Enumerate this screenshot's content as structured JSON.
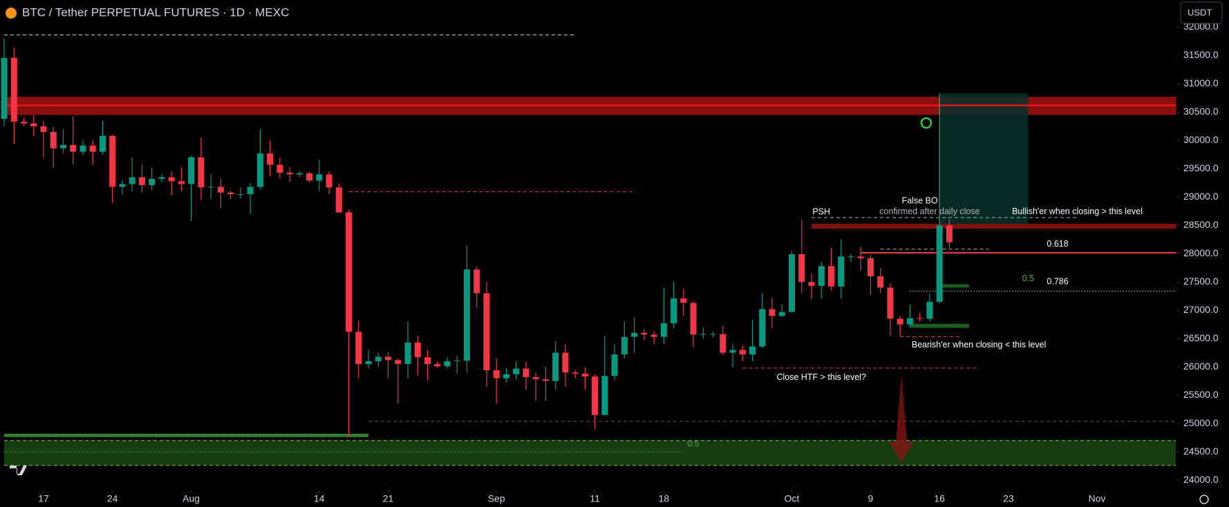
{
  "chart_data": {
    "type": "candlestick",
    "title": "BTC / Tether PERPETUAL FUTURES · 1D · MEXC",
    "currency": "USDT",
    "up_color": "#089981",
    "down_color": "#f23645",
    "grid": false,
    "x": [
      "Jul 13",
      "Jul 14",
      "Jul 15",
      "Jul 16",
      "Jul 17",
      "Jul 18",
      "Jul 19",
      "Jul 20",
      "Jul 21",
      "Jul 22",
      "Jul 23",
      "Jul 24",
      "Jul 25",
      "Jul 26",
      "Jul 27",
      "Jul 28",
      "Jul 29",
      "Jul 30",
      "Jul 31",
      "Aug 1",
      "Aug 2",
      "Aug 3",
      "Aug 4",
      "Aug 5",
      "Aug 6",
      "Aug 7",
      "Aug 8",
      "Aug 9",
      "Aug 10",
      "Aug 11",
      "Aug 12",
      "Aug 13",
      "Aug 14",
      "Aug 15",
      "Aug 16",
      "Aug 17",
      "Aug 18",
      "Aug 19",
      "Aug 20",
      "Aug 21",
      "Aug 22",
      "Aug 23",
      "Aug 24",
      "Aug 25",
      "Aug 26",
      "Aug 27",
      "Aug 28",
      "Aug 29",
      "Aug 30",
      "Aug 31",
      "Sep 1",
      "Sep 2",
      "Sep 3",
      "Sep 4",
      "Sep 5",
      "Sep 6",
      "Sep 7",
      "Sep 8",
      "Sep 9",
      "Sep 10",
      "Sep 11",
      "Sep 12",
      "Sep 13",
      "Sep 14",
      "Sep 15",
      "Sep 16",
      "Sep 17",
      "Sep 18",
      "Sep 19",
      "Sep 20",
      "Sep 21",
      "Sep 22",
      "Sep 23",
      "Sep 24",
      "Sep 25",
      "Sep 26",
      "Sep 27",
      "Sep 28",
      "Sep 29",
      "Sep 30",
      "Oct 1",
      "Oct 2",
      "Oct 3",
      "Oct 4",
      "Oct 5",
      "Oct 6",
      "Oct 7",
      "Oct 8",
      "Oct 9",
      "Oct 10",
      "Oct 11",
      "Oct 12",
      "Oct 13",
      "Oct 14",
      "Oct 15",
      "Oct 16",
      "Oct 17"
    ],
    "open": [
      30380,
      31460,
      30330,
      30300,
      30250,
      30150,
      29860,
      29920,
      29800,
      29910,
      29800,
      30080,
      29180,
      29230,
      29350,
      29210,
      29320,
      29350,
      29280,
      29230,
      29700,
      29170,
      29180,
      29080,
      29050,
      29050,
      29180,
      29770,
      29570,
      29430,
      29400,
      29420,
      29290,
      29400,
      29170,
      28730,
      26620,
      26050,
      26100,
      26180,
      26120,
      26050,
      26430,
      26170,
      26050,
      26010,
      26100,
      26110,
      27720,
      27300,
      25940,
      25800,
      25870,
      25970,
      25820,
      25780,
      25750,
      26250,
      25900,
      25880,
      25830,
      25150,
      25840,
      26220,
      26530,
      26600,
      26570,
      26530,
      26770,
      27210,
      27130,
      26570,
      26580,
      26580,
      26250,
      26300,
      26220,
      26360,
      27020,
      26900,
      26970,
      27990,
      27500,
      27430,
      27780,
      27420,
      27950,
      27950,
      27920,
      27600,
      27400,
      26850,
      26750,
      26860,
      26850,
      27150,
      28500
    ],
    "high": [
      31800,
      31640,
      30400,
      30450,
      30340,
      30240,
      30200,
      30420,
      30000,
      30000,
      30350,
      30100,
      29300,
      29700,
      29570,
      29520,
      29400,
      29450,
      29520,
      29730,
      30050,
      29400,
      29320,
      29110,
      29170,
      29250,
      30200,
      30000,
      29700,
      29530,
      29460,
      29450,
      29660,
      29450,
      29230,
      28780,
      26820,
      26300,
      26250,
      26260,
      26150,
      26800,
      26550,
      26300,
      26100,
      26170,
      26200,
      28150,
      27770,
      27500,
      26150,
      25980,
      26100,
      26100,
      25900,
      26000,
      26450,
      26400,
      25950,
      25990,
      25870,
      26550,
      26400,
      26800,
      26880,
      26670,
      26630,
      27400,
      27500,
      27380,
      27160,
      26700,
      26630,
      26730,
      26400,
      26380,
      26830,
      27300,
      27220,
      27100,
      28050,
      28600,
      27650,
      27850,
      28100,
      28250,
      28000,
      28120,
      27980,
      27750,
      27480,
      26900,
      27100,
      26950,
      27300,
      28600,
      28600
    ],
    "low": [
      30250,
      29940,
      30260,
      30080,
      29700,
      29520,
      29770,
      29580,
      29740,
      29570,
      29750,
      28900,
      29040,
      29100,
      29080,
      29120,
      29260,
      29030,
      29100,
      28580,
      28950,
      28960,
      28800,
      28960,
      28970,
      28700,
      29130,
      29370,
      29330,
      29270,
      29350,
      29250,
      29100,
      29050,
      28720,
      24760,
      25800,
      25980,
      26000,
      25800,
      25350,
      25800,
      25850,
      25770,
      25980,
      25970,
      25880,
      25900,
      27050,
      25650,
      25350,
      25730,
      25780,
      25600,
      25400,
      25400,
      25600,
      25650,
      25800,
      25600,
      24900,
      25150,
      25770,
      26150,
      26250,
      26470,
      26400,
      26400,
      26680,
      26900,
      26350,
      26500,
      26520,
      26200,
      25990,
      26100,
      26100,
      26330,
      26680,
      26880,
      26960,
      27300,
      27200,
      27200,
      27350,
      27200,
      27850,
      27700,
      27270,
      27300,
      26550,
      26550,
      26700,
      26800,
      26800,
      27120,
      28100
    ],
    "close": [
      31460,
      30330,
      30300,
      30250,
      30150,
      29860,
      29920,
      29800,
      29910,
      29800,
      30080,
      29180,
      29230,
      29350,
      29210,
      29320,
      29350,
      29280,
      29230,
      29700,
      29170,
      29180,
      29080,
      29050,
      29050,
      29180,
      29770,
      29570,
      29430,
      29400,
      29420,
      29290,
      29400,
      29170,
      28730,
      26620,
      26050,
      26100,
      26180,
      26120,
      26050,
      26430,
      26170,
      26050,
      26010,
      26100,
      26110,
      27720,
      27300,
      25940,
      25800,
      25870,
      25970,
      25820,
      25780,
      25750,
      26250,
      25900,
      25880,
      25830,
      25150,
      25840,
      26220,
      26530,
      26600,
      26570,
      26530,
      26770,
      27210,
      27130,
      26570,
      26580,
      26580,
      26250,
      26300,
      26220,
      26360,
      27020,
      26900,
      26970,
      27990,
      27500,
      27430,
      27780,
      27420,
      27950,
      27950,
      27920,
      27600,
      27400,
      26850,
      26750,
      26860,
      26850,
      27150,
      28500,
      28200
    ],
    "xlim": [
      "Jul 13",
      "Nov 9"
    ],
    "xticks": [
      {
        "value": "Jul 17",
        "label": "17"
      },
      {
        "value": "Jul 24",
        "label": "24"
      },
      {
        "value": "Aug 1",
        "label": "Aug"
      },
      {
        "value": "Aug 14",
        "label": "14"
      },
      {
        "value": "Aug 21",
        "label": "21"
      },
      {
        "value": "Sep 1",
        "label": "Sep"
      },
      {
        "value": "Sep 11",
        "label": "11"
      },
      {
        "value": "Sep 18",
        "label": "18"
      },
      {
        "value": "Oct 1",
        "label": "Oct"
      },
      {
        "value": "Oct 9",
        "label": "9"
      },
      {
        "value": "Oct 16",
        "label": "16"
      },
      {
        "value": "Oct 23",
        "label": "23"
      },
      {
        "value": "Nov 1",
        "label": "Nov"
      }
    ],
    "ylim": [
      23830,
      32480
    ],
    "yticks": [
      {
        "value": 24000,
        "label": "24000.0"
      },
      {
        "value": 24500,
        "label": "24500.0"
      },
      {
        "value": 25000,
        "label": "25000.0"
      },
      {
        "value": 25500,
        "label": "25500.0"
      },
      {
        "value": 26000,
        "label": "26000.0"
      },
      {
        "value": 26500,
        "label": "26500.0"
      },
      {
        "value": 27000,
        "label": "27000.0"
      },
      {
        "value": 27500,
        "label": "27500.0"
      },
      {
        "value": 28000,
        "label": "28000.0"
      },
      {
        "value": 28500,
        "label": "28500.0"
      },
      {
        "value": 29000,
        "label": "29000.0"
      },
      {
        "value": 29500,
        "label": "29500.0"
      },
      {
        "value": 30000,
        "label": "30000.0"
      },
      {
        "value": 30500,
        "label": "30500.0"
      },
      {
        "value": 31000,
        "label": "31000.0"
      },
      {
        "value": 31500,
        "label": "31500.0"
      },
      {
        "value": 32000,
        "label": "32000.0"
      }
    ],
    "zones": [
      {
        "low": 30450,
        "high": 30770,
        "from": "Jul 13",
        "to": "Nov 9",
        "color": "#8c0f0f"
      },
      {
        "low": 28440,
        "high": 28530,
        "from": "Oct 3",
        "to": "Nov 9",
        "color": "#7a1212"
      },
      {
        "low": 27400,
        "high": 27460,
        "from": "Oct 16",
        "to": "Oct 19",
        "color": "#1b5e20"
      },
      {
        "low": 26690,
        "high": 26760,
        "from": "Oct 13",
        "to": "Oct 19",
        "color": "#1b5e20"
      },
      {
        "low": 24760,
        "high": 24820,
        "from": "Jul 13",
        "to": "Aug 19",
        "color": "#2e7d32"
      },
      {
        "low": 24260,
        "high": 24700,
        "from": "Jul 13",
        "to": "Nov 9",
        "color": "#163d10"
      }
    ],
    "levels": [
      {
        "price": 30620,
        "from": "Jul 13",
        "to": "Nov 9",
        "color": "#ff1a1a",
        "style": "solid"
      },
      {
        "price": 31862,
        "from": "Jul 13",
        "to": "Sep 9",
        "color": "#d1d4dc",
        "style": "dashed"
      },
      {
        "price": 29093,
        "from": "Aug 17",
        "to": "Sep 15",
        "color": "#f23645",
        "style": "dashed"
      },
      {
        "price": 28637,
        "from": "Oct 3",
        "to": "Oct 30",
        "color": "#b2b5be",
        "style": "dashed"
      },
      {
        "price": 28080,
        "from": "Oct 10",
        "to": "Oct 21",
        "color": "#b2b5be",
        "style": "dashed"
      },
      {
        "price": 28014,
        "from": "Oct 8",
        "to": "Nov 9",
        "color": "#f23645",
        "style": "solid"
      },
      {
        "price": 27336,
        "from": "Oct 13",
        "to": "Nov 9",
        "color": "#c8c864",
        "style": "dotted"
      },
      {
        "price": 26533,
        "from": "Oct 12",
        "to": "Oct 18",
        "color": "#f23645",
        "style": "dashed"
      },
      {
        "price": 25979,
        "from": "Sep 26",
        "to": "Oct 20",
        "color": "#f23645",
        "style": "dashed"
      },
      {
        "price": 25038,
        "from": "Aug 19",
        "to": "Nov 9",
        "color": "#5d606b",
        "style": "dashed"
      },
      {
        "price": 24700,
        "from": "Jul 13",
        "to": "Nov 9",
        "color": "#8bc34a",
        "style": "dashed"
      },
      {
        "price": 24260,
        "from": "Jul 13",
        "to": "Nov 9",
        "color": "#8bc34a",
        "style": "dashed"
      },
      {
        "price": 24498,
        "from": "Jul 13",
        "to": "Sep 20",
        "color": "#4caf50",
        "style": "dotted"
      }
    ],
    "position": {
      "from": "Oct 16",
      "to": "Oct 25",
      "entry": 28530,
      "target": 30830,
      "color": "#08302a"
    },
    "annotations": [
      {
        "text": "PSH",
        "date": "Oct 4",
        "price": 28734,
        "color": "#ffffff"
      },
      {
        "text": "False BO",
        "date": "Oct 14",
        "price": 28930,
        "color": "#ffffff"
      },
      {
        "text": "confirmed after daily close",
        "date": "Oct 15",
        "price": 28740,
        "color": "#b2b5be"
      },
      {
        "text": "Bullish'er when closing > this level",
        "date": "Oct 30",
        "price": 28740,
        "color": "#ffffff"
      },
      {
        "text": "0.618",
        "date": "Oct 28",
        "price": 28166,
        "color": "#ffffff"
      },
      {
        "text": "0.5",
        "date": "Oct 25",
        "price": 27557,
        "color": "#4caf50"
      },
      {
        "text": "0.786",
        "date": "Oct 28",
        "price": 27502,
        "color": "#ffffff"
      },
      {
        "text": "Bearish'er when closing < this level",
        "date": "Oct 20",
        "price": 26381,
        "color": "#ffffff"
      },
      {
        "text": "Close HTF > this level?",
        "date": "Oct 4",
        "price": 25813,
        "color": "#ffffff"
      },
      {
        "text": "0.5",
        "date": "Sep 21",
        "price": 24637,
        "color": "#4caf50"
      }
    ]
  }
}
